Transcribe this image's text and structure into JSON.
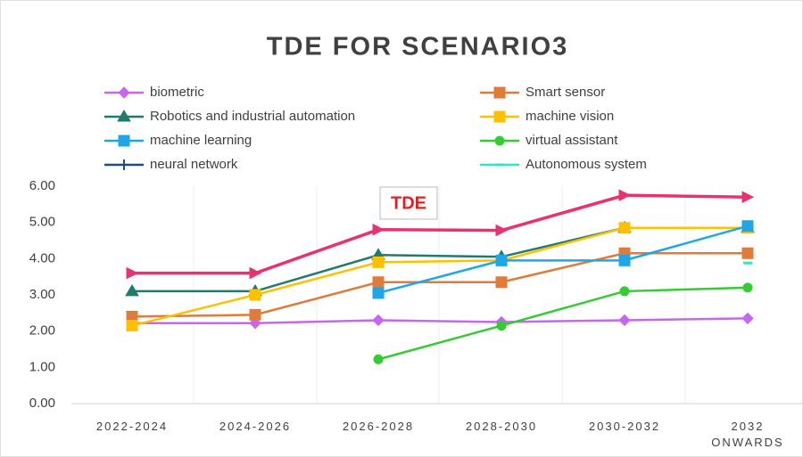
{
  "chart_data": {
    "type": "line",
    "title": "TDE FOR SCENARIO3",
    "categories": [
      "2022-2024",
      "2024-2026",
      "2026-2028",
      "2028-2030",
      "2030-2032",
      "2032 ONWARDS"
    ],
    "series": [
      {
        "name": "biometric",
        "color": "#c767f0",
        "marker": "diamond",
        "values": [
          2.22,
          2.22,
          2.3,
          2.25,
          2.3,
          2.35
        ]
      },
      {
        "name": "Smart sensor",
        "color": "#e07b39",
        "marker": "square",
        "values": [
          2.4,
          2.45,
          3.35,
          3.35,
          4.15,
          4.15
        ]
      },
      {
        "name": "Robotics and industrial automation",
        "color": "#1e7b6e",
        "marker": "triangle",
        "values": [
          3.1,
          3.1,
          4.1,
          4.05,
          4.85,
          4.85
        ]
      },
      {
        "name": "machine vision",
        "color": "#ffc000",
        "marker": "square",
        "values": [
          2.15,
          3.0,
          3.9,
          3.95,
          4.85,
          4.85
        ]
      },
      {
        "name": "machine learning",
        "color": "#1ea7e8",
        "marker": "square",
        "values": [
          null,
          null,
          3.05,
          3.95,
          3.95,
          4.9
        ]
      },
      {
        "name": "virtual assistant",
        "color": "#33cc33",
        "marker": "circle",
        "values": [
          null,
          null,
          1.22,
          2.15,
          3.1,
          3.2
        ]
      },
      {
        "name": "neural network",
        "color": "#1f4e79",
        "marker": "plus",
        "values": [
          null,
          null,
          null,
          null,
          null,
          null
        ]
      },
      {
        "name": "Autonomous system",
        "color": "#2ee6c8",
        "marker": "dash",
        "values": [
          null,
          null,
          null,
          null,
          null,
          3.88
        ]
      },
      {
        "name": "TDE",
        "color": "#e8336f",
        "marker": "arrow",
        "in_legend": false,
        "values": [
          3.6,
          3.6,
          4.8,
          4.78,
          5.75,
          5.7
        ]
      }
    ],
    "ylim": [
      0,
      6
    ],
    "yticks": [
      {
        "value": 0,
        "label": "0.00"
      },
      {
        "value": 1,
        "label": "1.00"
      },
      {
        "value": 2,
        "label": "2.00"
      },
      {
        "value": 3,
        "label": "3.00"
      },
      {
        "value": 4,
        "label": "4.00"
      },
      {
        "value": 5,
        "label": "5.00"
      },
      {
        "value": 6,
        "label": "6.00"
      }
    ],
    "grid": false
  }
}
